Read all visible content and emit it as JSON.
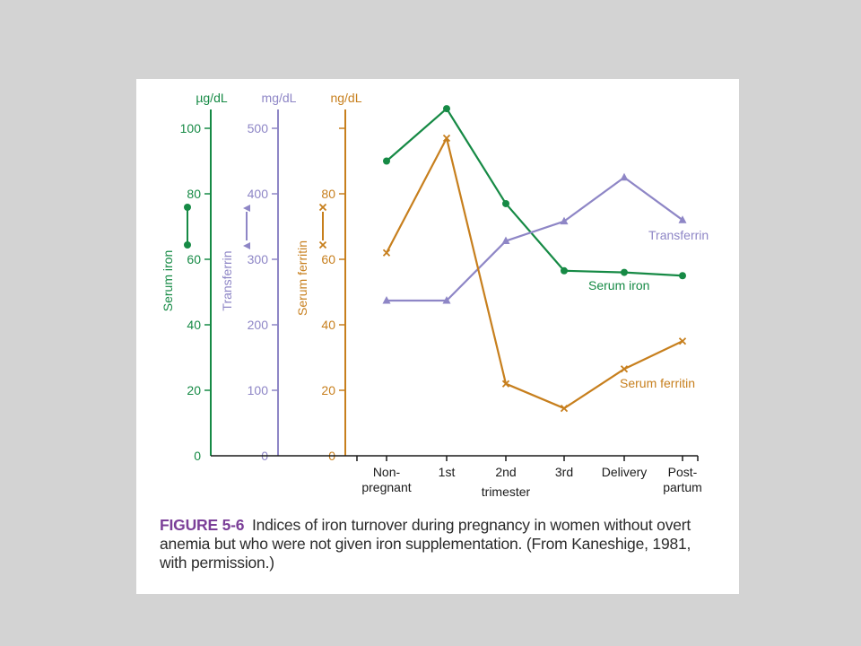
{
  "colors": {
    "iron": "#168a45",
    "transferrin": "#8e86c6",
    "ferritin": "#c77f1d",
    "black": "#1a1a1a"
  },
  "axes": [
    {
      "key": "iron",
      "unit": "µg/dL",
      "title": "Serum iron",
      "min": 0,
      "max": 100,
      "ticks": [
        0,
        20,
        40,
        60,
        80,
        100
      ]
    },
    {
      "key": "transferrin",
      "unit": "mg/dL",
      "title": "Transferrin",
      "min": 0,
      "max": 500,
      "ticks": [
        0,
        100,
        200,
        300,
        400,
        500
      ]
    },
    {
      "key": "ferritin",
      "unit": "ng/dL",
      "title": "Serum ferritin",
      "min": 0,
      "max": 100,
      "ticks": [
        0,
        20,
        40,
        60,
        80
      ]
    }
  ],
  "chart_data": {
    "type": "line",
    "categories": [
      [
        "Non-",
        "pregnant"
      ],
      [
        "1st"
      ],
      [
        "2nd",
        "trimester"
      ],
      [
        "3rd"
      ],
      [
        "Delivery"
      ],
      [
        "Post-",
        "partum"
      ]
    ],
    "series": [
      {
        "name": "Serum iron",
        "axis": "iron",
        "marker": "circle",
        "unit": "µg/dL",
        "values": [
          90,
          106,
          77,
          56.5,
          56,
          55
        ]
      },
      {
        "name": "Transferrin",
        "axis": "transferrin",
        "marker": "triangle",
        "unit": "mg/dL",
        "values": [
          237,
          237,
          328,
          358,
          425,
          360
        ]
      },
      {
        "name": "Serum ferritin",
        "axis": "ferritin",
        "marker": "x",
        "unit": "ng/dL",
        "values": [
          62,
          97,
          22,
          14.5,
          26.5,
          35
        ]
      }
    ],
    "grid": false
  },
  "caption": {
    "label": "FIGURE 5-6",
    "lines": [
      "Indices of iron turnover during pregnancy in women without overt",
      "anemia but who were not given iron supplementation. (From Kaneshige, 1981,",
      "with permission.)"
    ]
  }
}
